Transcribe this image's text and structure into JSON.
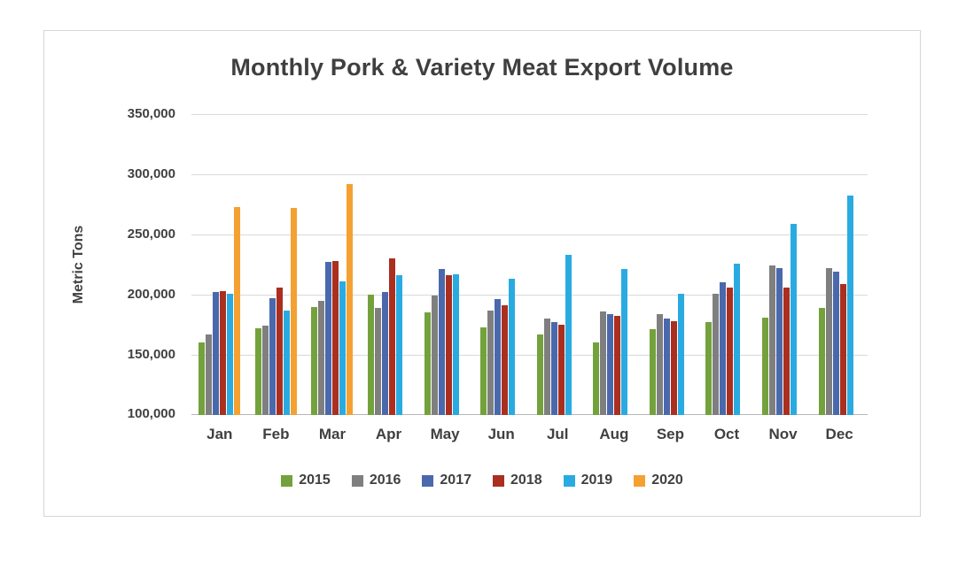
{
  "chart_data": {
    "type": "bar",
    "title": "Monthly Pork & Variety Meat Export Volume",
    "xlabel": "",
    "ylabel": "Metric Tons",
    "categories": [
      "Jan",
      "Feb",
      "Mar",
      "Apr",
      "May",
      "Jun",
      "Jul",
      "Aug",
      "Sep",
      "Oct",
      "Nov",
      "Dec"
    ],
    "ylim": [
      100000,
      350000
    ],
    "ytick_step": 50000,
    "yticks_labels": [
      "100,000",
      "150,000",
      "200,000",
      "250,000",
      "300,000",
      "350,000"
    ],
    "grid": true,
    "legend_position": "bottom",
    "series": [
      {
        "name": "2015",
        "color": "#73a23c",
        "values": [
          160000,
          172000,
          190000,
          200000,
          185000,
          173000,
          167000,
          160000,
          171000,
          177000,
          181000,
          189000
        ]
      },
      {
        "name": "2016",
        "color": "#7f7f7f",
        "values": [
          167000,
          174000,
          195000,
          189000,
          199000,
          187000,
          180000,
          186000,
          184000,
          201000,
          224000,
          222000
        ]
      },
      {
        "name": "2017",
        "color": "#4a69ad",
        "values": [
          202000,
          197000,
          227000,
          202000,
          221000,
          196000,
          177000,
          184000,
          180000,
          210000,
          222000,
          219000
        ]
      },
      {
        "name": "2018",
        "color": "#ab2f1e",
        "values": [
          203000,
          206000,
          228000,
          230000,
          216000,
          191000,
          175000,
          182000,
          178000,
          206000,
          206000,
          209000
        ]
      },
      {
        "name": "2019",
        "color": "#29abe2",
        "values": [
          201000,
          187000,
          211000,
          216000,
          217000,
          213000,
          233000,
          221000,
          201000,
          226000,
          259000,
          282000
        ]
      },
      {
        "name": "2020",
        "color": "#f4a132",
        "values": [
          273000,
          272000,
          292000,
          null,
          null,
          null,
          null,
          null,
          null,
          null,
          null,
          null
        ]
      }
    ]
  }
}
